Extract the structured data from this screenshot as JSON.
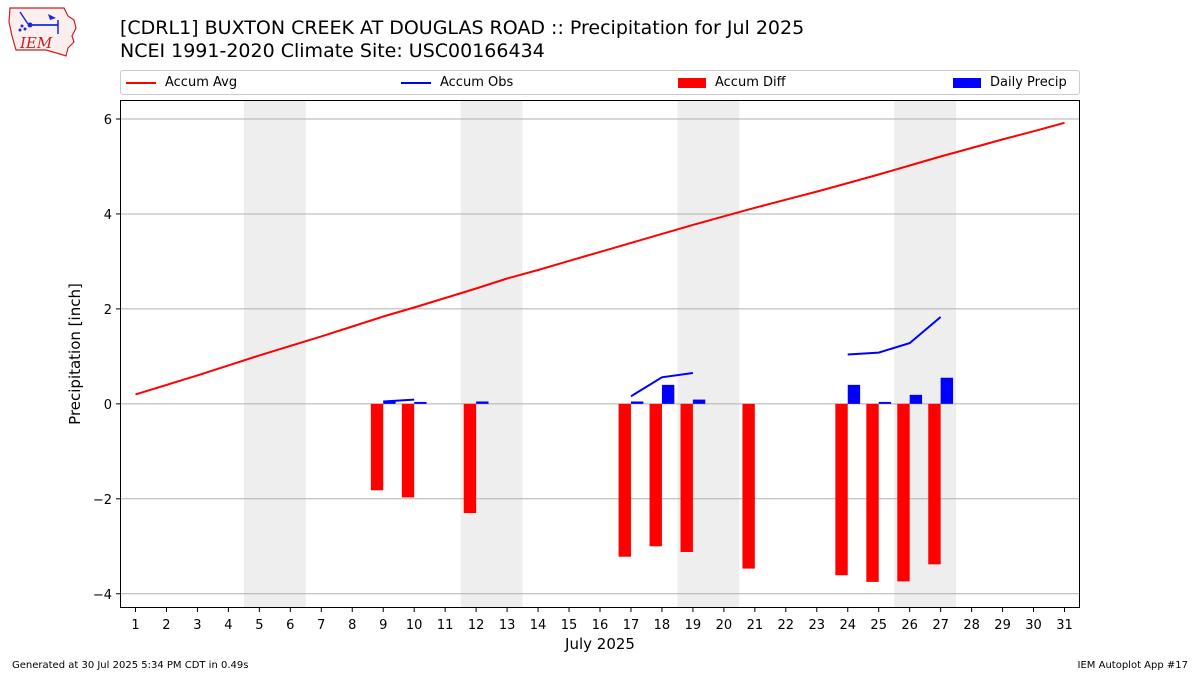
{
  "header": {
    "title_line1": "[CDRL1] BUXTON CREEK AT DOUGLAS ROAD :: Precipitation for Jul 2025",
    "title_line2": "NCEI 1991-2020 Climate Site: USC00166434"
  },
  "logo": {
    "text": "IEM"
  },
  "footer": {
    "generated": "Generated at 30 Jul 2025 5:34 PM CDT in 0.49s",
    "app": "IEM Autoplot App #17"
  },
  "chart_data": {
    "type": "bar",
    "xlabel": "July 2025",
    "ylabel": "Precipitation [inch]",
    "xlim": [
      0.5,
      31.5
    ],
    "ylim": [
      -4.3,
      6.4
    ],
    "yticks": [
      -4,
      -2,
      0,
      2,
      4,
      6
    ],
    "xticks": [
      1,
      2,
      3,
      4,
      5,
      6,
      7,
      8,
      9,
      10,
      11,
      12,
      13,
      14,
      15,
      16,
      17,
      18,
      19,
      20,
      21,
      22,
      23,
      24,
      25,
      26,
      27,
      28,
      29,
      30,
      31
    ],
    "grid": "horizontal",
    "legend_position": "top",
    "weekend_shading": [
      [
        4.5,
        6.5
      ],
      [
        11.5,
        13.5
      ],
      [
        18.5,
        20.5
      ],
      [
        25.5,
        27.5
      ]
    ],
    "legend": [
      {
        "label": "Accum Avg",
        "kind": "line",
        "color": "#ff0000"
      },
      {
        "label": "Accum Obs",
        "kind": "line",
        "color": "#0000ff"
      },
      {
        "label": "Accum Diff",
        "kind": "bar",
        "color": "#ff0000"
      },
      {
        "label": "Daily Precip",
        "kind": "bar",
        "color": "#0000ff"
      }
    ],
    "series": [
      {
        "name": "Accum Avg",
        "kind": "line",
        "color": "#ff0000",
        "points": [
          [
            1,
            0.2
          ],
          [
            2,
            0.4
          ],
          [
            3,
            0.6
          ],
          [
            4,
            0.81
          ],
          [
            5,
            1.02
          ],
          [
            6,
            1.22
          ],
          [
            7,
            1.42
          ],
          [
            8,
            1.63
          ],
          [
            9,
            1.84
          ],
          [
            10,
            2.03
          ],
          [
            11,
            2.23
          ],
          [
            12,
            2.43
          ],
          [
            13,
            2.64
          ],
          [
            14,
            2.82
          ],
          [
            15,
            3.01
          ],
          [
            16,
            3.2
          ],
          [
            17,
            3.39
          ],
          [
            18,
            3.58
          ],
          [
            19,
            3.77
          ],
          [
            20,
            3.95
          ],
          [
            21,
            4.13
          ],
          [
            22,
            4.3
          ],
          [
            23,
            4.47
          ],
          [
            24,
            4.65
          ],
          [
            25,
            4.83
          ],
          [
            26,
            5.02
          ],
          [
            27,
            5.21
          ],
          [
            28,
            5.39
          ],
          [
            29,
            5.57
          ],
          [
            30,
            5.74
          ],
          [
            31,
            5.92
          ]
        ]
      },
      {
        "name": "Accum Obs",
        "kind": "line",
        "color": "#0000ff",
        "segments": [
          [
            [
              9,
              0.05
            ],
            [
              10,
              0.09
            ]
          ],
          [
            [
              17,
              0.16
            ],
            [
              18,
              0.56
            ],
            [
              19,
              0.65
            ]
          ],
          [
            [
              24,
              1.04
            ],
            [
              25,
              1.08
            ],
            [
              26,
              1.28
            ],
            [
              27,
              1.83
            ]
          ]
        ]
      },
      {
        "name": "Accum Diff",
        "kind": "bar",
        "color": "#ff0000",
        "points": [
          [
            8.8,
            -1.82
          ],
          [
            9.8,
            -1.97
          ],
          [
            11.8,
            -2.3
          ],
          [
            16.8,
            -3.22
          ],
          [
            17.8,
            -3.0
          ],
          [
            18.8,
            -3.12
          ],
          [
            20.8,
            -3.47
          ],
          [
            23.8,
            -3.61
          ],
          [
            24.8,
            -3.75
          ],
          [
            25.8,
            -3.74
          ],
          [
            26.8,
            -3.38
          ]
        ]
      },
      {
        "name": "Daily Precip",
        "kind": "bar",
        "color": "#0000ff",
        "points": [
          [
            9.2,
            0.05
          ],
          [
            10.2,
            0.04
          ],
          [
            12.2,
            0.05
          ],
          [
            17.2,
            0.05
          ],
          [
            18.2,
            0.4
          ],
          [
            19.2,
            0.09
          ],
          [
            24.2,
            0.4
          ],
          [
            25.2,
            0.04
          ],
          [
            26.2,
            0.19
          ],
          [
            27.2,
            0.55
          ]
        ]
      }
    ]
  }
}
